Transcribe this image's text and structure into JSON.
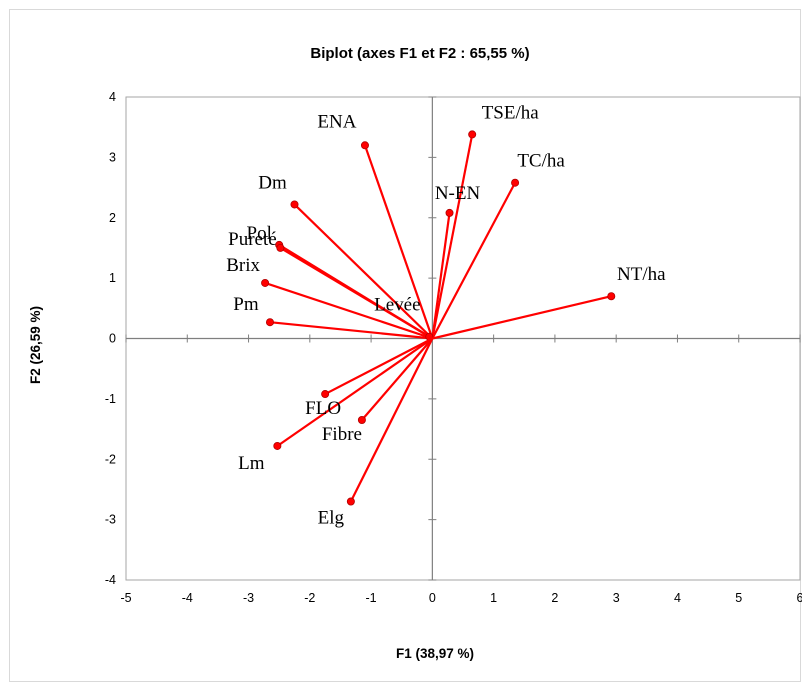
{
  "chart_data": {
    "type": "scatter",
    "subtype": "biplot",
    "title": "Biplot (axes F1 et F2 : 65,55 %)",
    "xlabel": "F1 (38,97 %)",
    "ylabel": "F2 (26,59 %)",
    "xlim": [
      -5,
      6
    ],
    "ylim": [
      -4,
      4
    ],
    "xticks": [
      -5,
      -4,
      -3,
      -2,
      -1,
      0,
      1,
      2,
      3,
      4,
      5,
      6
    ],
    "yticks": [
      -4,
      -3,
      -2,
      -1,
      0,
      1,
      2,
      3,
      4
    ],
    "grid": false,
    "vector_color": "#ff0000",
    "axis_color": "#7f7f7f",
    "points": [
      {
        "label": "ENA",
        "x": -1.1,
        "y": 3.2
      },
      {
        "label": "TSE/ha",
        "x": 0.65,
        "y": 3.38
      },
      {
        "label": "TC/ha",
        "x": 1.35,
        "y": 2.58
      },
      {
        "label": "N-EN",
        "x": 0.28,
        "y": 2.08
      },
      {
        "label": "Dm",
        "x": -2.25,
        "y": 2.22
      },
      {
        "label": "Pol",
        "x": -2.5,
        "y": 1.55
      },
      {
        "label": "Pureté",
        "x": -2.48,
        "y": 1.5
      },
      {
        "label": "Brix",
        "x": -2.73,
        "y": 0.92
      },
      {
        "label": "Pm",
        "x": -2.65,
        "y": 0.27
      },
      {
        "label": "Levée",
        "x": -0.05,
        "y": 0.03
      },
      {
        "label": "NT/ha",
        "x": 2.92,
        "y": 0.7
      },
      {
        "label": "FLO",
        "x": -1.75,
        "y": -0.92
      },
      {
        "label": "Fibre",
        "x": -1.15,
        "y": -1.35
      },
      {
        "label": "Lm",
        "x": -2.53,
        "y": -1.78
      },
      {
        "label": "Elg",
        "x": -1.33,
        "y": -2.7
      }
    ]
  }
}
